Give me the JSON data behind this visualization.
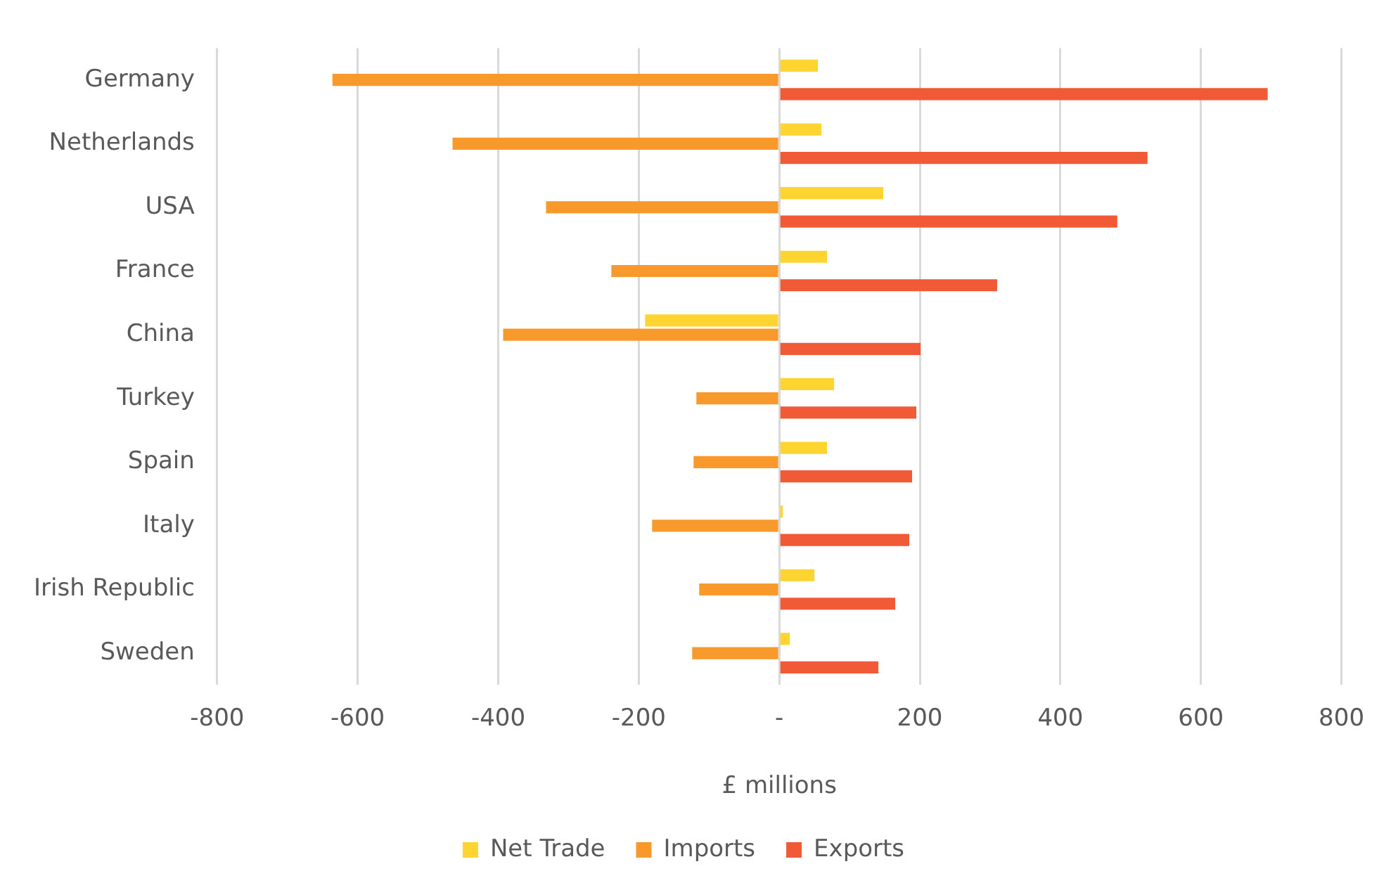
{
  "chart_data": {
    "type": "bar",
    "orientation": "horizontal",
    "xlabel": "£ millions",
    "categories": [
      "Germany",
      "Netherlands",
      "USA",
      "France",
      "China",
      "Turkey",
      "Spain",
      "Italy",
      "Irish Republic",
      "Sweden"
    ],
    "series": [
      {
        "name": "Net Trade",
        "color": "#fed530",
        "values": [
          55,
          60,
          148,
          68,
          -191,
          78,
          68,
          5,
          50,
          15
        ]
      },
      {
        "name": "Imports",
        "color": "#f7992b",
        "values": [
          -636,
          -465,
          -332,
          -239,
          -393,
          -118,
          -122,
          -181,
          -114,
          -124
        ]
      },
      {
        "name": "Exports",
        "color": "#f05a37",
        "values": [
          695,
          524,
          481,
          310,
          201,
          195,
          189,
          185,
          165,
          141
        ]
      }
    ],
    "xlim": [
      -800,
      800
    ],
    "xticks": [
      -800,
      -600,
      -400,
      -200,
      {
        "value": 0,
        "label": "-"
      },
      200,
      400,
      600,
      800
    ],
    "grid": "x",
    "legend": "bottom"
  }
}
